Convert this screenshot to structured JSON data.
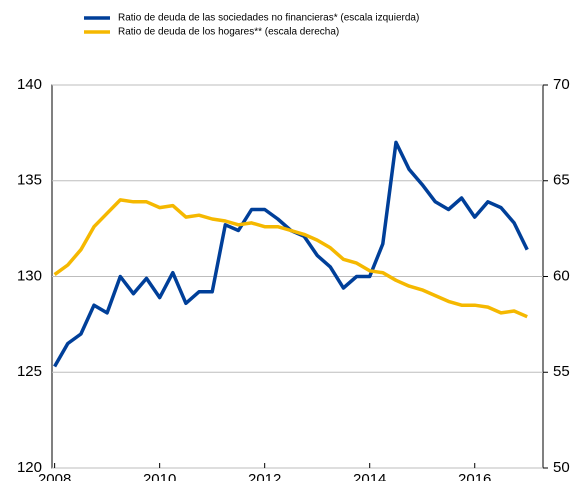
{
  "chart_data": {
    "type": "line",
    "x": [
      2008,
      2008.25,
      2008.5,
      2008.75,
      2009,
      2009.25,
      2009.5,
      2009.75,
      2010,
      2010.25,
      2010.5,
      2010.75,
      2011,
      2011.25,
      2011.5,
      2011.75,
      2012,
      2012.25,
      2012.5,
      2012.75,
      2013,
      2013.25,
      2013.5,
      2013.75,
      2014,
      2014.25,
      2014.5,
      2014.75,
      2015,
      2015.25,
      2015.5,
      2015.75,
      2016,
      2016.25,
      2016.5,
      2016.75,
      2017
    ],
    "series": [
      {
        "name": "Ratio de deuda de las sociedades no financieras* (escala izquierda)",
        "color": "#003f99",
        "values": [
          125.3,
          126.5,
          127.0,
          128.5,
          128.1,
          130.0,
          129.1,
          129.9,
          128.9,
          130.2,
          128.6,
          129.2,
          129.2,
          132.7,
          132.4,
          133.5,
          133.5,
          133.0,
          132.4,
          132.1,
          131.1,
          130.5,
          129.4,
          130.0,
          130.0,
          131.7,
          137.0,
          135.6,
          134.8,
          133.9,
          133.5,
          134.1,
          133.1,
          133.9,
          133.6,
          132.8,
          131.4
        ]
      },
      {
        "name": "Ratio de deuda de los hogares** (escala derecha)",
        "color": "#f5b800",
        "axis": "y2",
        "values": [
          60.1,
          60.6,
          61.4,
          62.6,
          63.3,
          64.0,
          63.9,
          63.9,
          63.6,
          63.7,
          63.1,
          63.2,
          63.0,
          62.9,
          62.7,
          62.8,
          62.6,
          62.6,
          62.4,
          62.2,
          61.9,
          61.5,
          60.9,
          60.7,
          60.3,
          60.2,
          59.8,
          59.5,
          59.3,
          59.0,
          58.7,
          58.5,
          58.5,
          58.4,
          58.1,
          58.2,
          57.9
        ]
      }
    ],
    "xlim": [
      2007.95,
      2017.3
    ],
    "xticks": [
      2008,
      2010,
      2012,
      2014,
      2016
    ],
    "ylim": [
      120,
      140
    ],
    "yticks": [
      120,
      125,
      130,
      135,
      140
    ],
    "y2lim": [
      50,
      70
    ],
    "y2ticks": [
      50,
      55,
      60,
      65,
      70
    ],
    "grid": true
  }
}
